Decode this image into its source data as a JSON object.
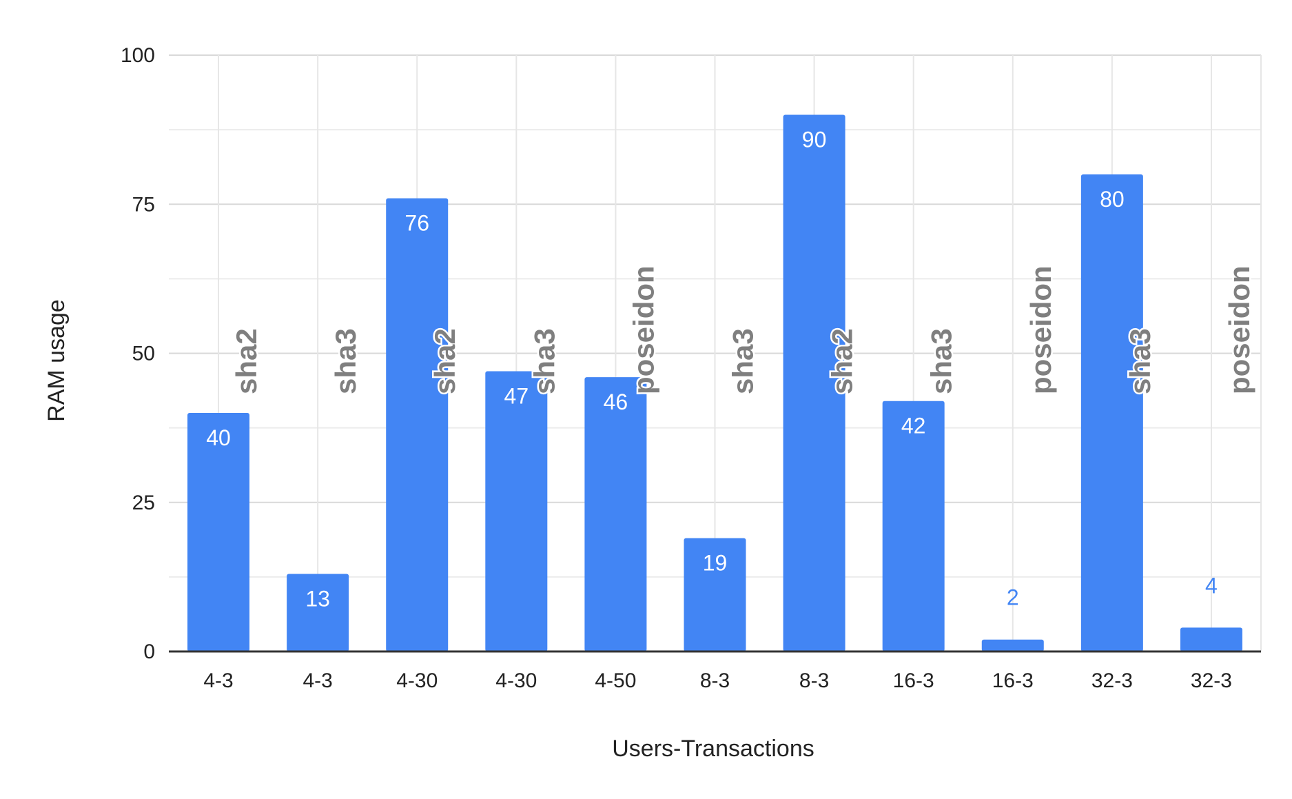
{
  "chart_data": {
    "type": "bar",
    "title": "",
    "xlabel": "Users-Transactions",
    "ylabel": "RAM usage",
    "ylim": [
      0,
      100
    ],
    "yticks": [
      0,
      25,
      50,
      75,
      100
    ],
    "grid": true,
    "categories": [
      "4-3",
      "4-3",
      "4-30",
      "4-30",
      "4-50",
      "8-3",
      "8-3",
      "16-3",
      "16-3",
      "32-3",
      "32-3"
    ],
    "values": [
      40,
      13,
      76,
      47,
      46,
      19,
      90,
      42,
      2,
      80,
      4
    ],
    "annotations": [
      "sha2",
      "sha3",
      "sha2",
      "sha3",
      "poseidon",
      "sha3",
      "sha2",
      "sha3",
      "poseidon",
      "sha3",
      "poseidon"
    ],
    "colors": {
      "bar": "#4285f4",
      "annotation": "#7f7f7f",
      "grid": "#d9d9d9",
      "axis": "#333333"
    }
  }
}
